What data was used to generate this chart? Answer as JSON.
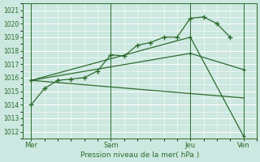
{
  "xlabel": "Pression niveau de la mer( hPa )",
  "background_color": "#cce8e0",
  "grid_color": "#ffffff",
  "line_color": "#2d6b2d",
  "ylim": [
    1011.5,
    1021.5
  ],
  "yticks": [
    1012,
    1013,
    1014,
    1015,
    1016,
    1017,
    1018,
    1019,
    1020,
    1021
  ],
  "xtick_labels": [
    "Mer",
    "Sam",
    "Jeu",
    "Ven"
  ],
  "xtick_positions": [
    0,
    36,
    72,
    96
  ],
  "xlim": [
    -4,
    102
  ],
  "series": [
    {
      "x": [
        0,
        6,
        12,
        18,
        24,
        30,
        36,
        42,
        48,
        54,
        60,
        66,
        72,
        78,
        84,
        90
      ],
      "y": [
        1014.0,
        1015.2,
        1015.8,
        1015.9,
        1016.0,
        1016.5,
        1017.7,
        1017.6,
        1018.4,
        1018.6,
        1019.0,
        1019.0,
        1020.4,
        1020.5,
        1020.0,
        1019.0
      ]
    },
    {
      "x": [
        0,
        96
      ],
      "y": [
        1015.8,
        1014.5
      ]
    },
    {
      "x": [
        0,
        72,
        96
      ],
      "y": [
        1015.8,
        1017.8,
        1016.6
      ]
    },
    {
      "x": [
        0,
        72,
        96
      ],
      "y": [
        1015.8,
        1019.0,
        1011.7
      ]
    }
  ],
  "vline_positions": [
    0,
    36,
    72,
    96
  ]
}
